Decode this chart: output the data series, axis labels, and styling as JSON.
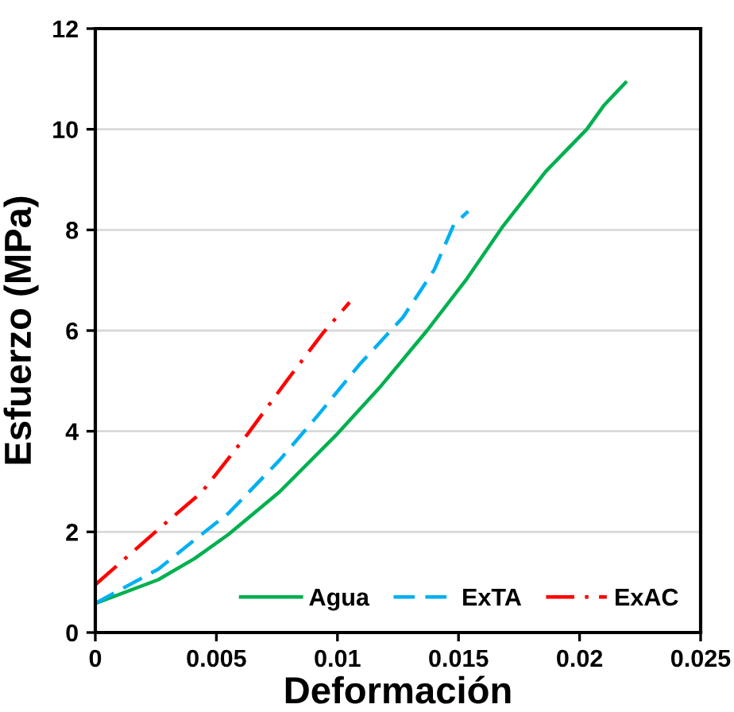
{
  "chart_data": {
    "type": "line",
    "xlabel": "Deformación",
    "ylabel": "Esfuerzo (MPa)",
    "xlim": [
      0,
      0.025
    ],
    "xticks": [
      0,
      0.005,
      0.01,
      0.015,
      0.02,
      0.025
    ],
    "ylim": [
      0,
      12
    ],
    "yticks": [
      0,
      2,
      4,
      6,
      8,
      10,
      12
    ],
    "grid": "y",
    "legend": "bottom right",
    "series": [
      {
        "name": "Agua",
        "color": "#00b050",
        "line_style": "solid",
        "x": [
          0,
          0.0026,
          0.0041,
          0.0055,
          0.0076,
          0.01,
          0.0118,
          0.0137,
          0.0153,
          0.0168,
          0.0186,
          0.0203,
          0.021,
          0.0219
        ],
        "values": [
          0.58,
          1.05,
          1.47,
          1.95,
          2.79,
          3.95,
          4.9,
          6.0,
          7.0,
          8.05,
          9.16,
          10.0,
          10.47,
          10.93
        ]
      },
      {
        "name": "ExTA",
        "color": "#00b0f0",
        "line_style": "dashed",
        "x": [
          0,
          0.0026,
          0.0041,
          0.0055,
          0.0076,
          0.0092,
          0.0109,
          0.0127,
          0.014,
          0.0148,
          0.0154
        ],
        "values": [
          0.58,
          1.26,
          1.84,
          2.37,
          3.42,
          4.32,
          5.32,
          6.26,
          7.21,
          8.1,
          8.37
        ]
      },
      {
        "name": "ExAC",
        "color": "#ff0000",
        "line_style": "dashdot",
        "x": [
          0,
          0.0026,
          0.0044,
          0.0063,
          0.0079,
          0.0094,
          0.0105
        ],
        "values": [
          0.95,
          2.05,
          2.79,
          3.95,
          5.0,
          5.95,
          6.56
        ]
      }
    ]
  }
}
